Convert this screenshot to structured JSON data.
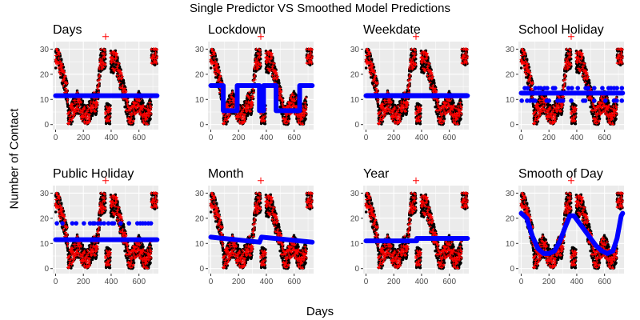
{
  "figure": {
    "title": "Single Predictor VS Smoothed Model Predictions",
    "xlabel": "Days",
    "ylabel": "Number of Contact"
  },
  "colors": {
    "panel_background": "#ebebeb",
    "grid": "#ffffff",
    "observed_points": "#000000",
    "prediction_crosses": "#ff0000",
    "smoothed_predictions": "#0000ff",
    "tick_text": "#4d4d4d"
  },
  "chart_data": [
    {
      "type": "scatter",
      "title": "Days",
      "xlim": [
        -20,
        740
      ],
      "ylim": [
        -2,
        33
      ],
      "x_ticks": [
        0,
        200,
        400,
        600
      ],
      "y_ticks": [
        0,
        10,
        20,
        30
      ],
      "grid": true,
      "observed": "actual daily contact counts (black points), 0-730 days, range about 0-30",
      "red_crosses": "per-observation predictions (red +), range about 0-30; outlier near x=360, y=35",
      "blue_line": [
        [
          0,
          11.5
        ],
        [
          730,
          11.5
        ]
      ]
    },
    {
      "type": "scatter",
      "title": "Lockdown",
      "xlim": [
        -20,
        740
      ],
      "ylim": [
        -2,
        33
      ],
      "x_ticks": [
        0,
        200,
        400,
        600
      ],
      "y_ticks": [
        0,
        10,
        20,
        30
      ],
      "grid": true,
      "blue_line": [
        [
          0,
          15.5
        ],
        [
          90,
          15.5
        ],
        [
          90,
          5.5
        ],
        [
          190,
          5.5
        ],
        [
          190,
          15.5
        ],
        [
          350,
          15.5
        ],
        [
          350,
          5.5
        ],
        [
          380,
          5.5
        ],
        [
          380,
          15.5
        ],
        [
          470,
          15.5
        ],
        [
          470,
          5.5
        ],
        [
          640,
          5.5
        ],
        [
          640,
          15.5
        ],
        [
          730,
          15.5
        ]
      ]
    },
    {
      "type": "scatter",
      "title": "Weekdate",
      "xlim": [
        -20,
        740
      ],
      "ylim": [
        -2,
        33
      ],
      "x_ticks": [
        0,
        200,
        400,
        600
      ],
      "y_ticks": [
        0,
        10,
        20,
        30
      ],
      "grid": true,
      "blue_line": [
        [
          0,
          11.5
        ],
        [
          730,
          11.5
        ]
      ],
      "blue_band": [
        10.5,
        12.5
      ]
    },
    {
      "type": "scatter",
      "title": "School Holiday",
      "xlim": [
        -20,
        740
      ],
      "ylim": [
        -2,
        33
      ],
      "x_ticks": [
        0,
        200,
        400,
        600
      ],
      "y_ticks": [
        0,
        10,
        20,
        30
      ],
      "grid": true,
      "blue_line": [
        [
          0,
          12.5
        ],
        [
          730,
          12.5
        ]
      ],
      "blue_levels": [
        9.5,
        14.5
      ]
    },
    {
      "type": "scatter",
      "title": "Public Holiday",
      "xlim": [
        -20,
        740
      ],
      "ylim": [
        -2,
        33
      ],
      "x_ticks": [
        0,
        200,
        400,
        600
      ],
      "y_ticks": [
        0,
        10,
        20,
        30
      ],
      "grid": true,
      "blue_line": [
        [
          0,
          11.5
        ],
        [
          730,
          11.5
        ]
      ],
      "blue_levels": [
        18
      ]
    },
    {
      "type": "scatter",
      "title": "Month",
      "xlim": [
        -20,
        740
      ],
      "ylim": [
        -2,
        33
      ],
      "x_ticks": [
        0,
        200,
        400,
        600
      ],
      "y_ticks": [
        0,
        10,
        20,
        30
      ],
      "grid": true,
      "blue_line": [
        [
          0,
          12.5
        ],
        [
          350,
          10.5
        ],
        [
          365,
          12.5
        ],
        [
          730,
          10.5
        ]
      ]
    },
    {
      "type": "scatter",
      "title": "Year",
      "xlim": [
        -20,
        740
      ],
      "ylim": [
        -2,
        33
      ],
      "x_ticks": [
        0,
        200,
        400,
        600
      ],
      "y_ticks": [
        0,
        10,
        20,
        30
      ],
      "grid": true,
      "blue_line": [
        [
          0,
          11
        ],
        [
          365,
          11
        ],
        [
          365,
          12
        ],
        [
          730,
          12
        ]
      ]
    },
    {
      "type": "scatter",
      "title": "Smooth of Day",
      "xlim": [
        -20,
        740
      ],
      "ylim": [
        -2,
        33
      ],
      "x_ticks": [
        0,
        200,
        400,
        600
      ],
      "y_ticks": [
        0,
        10,
        20,
        30
      ],
      "grid": true,
      "blue_line": [
        [
          0,
          22
        ],
        [
          40,
          20
        ],
        [
          80,
          13
        ],
        [
          120,
          8
        ],
        [
          160,
          6
        ],
        [
          200,
          6
        ],
        [
          240,
          7
        ],
        [
          280,
          11
        ],
        [
          320,
          17
        ],
        [
          350,
          21
        ],
        [
          380,
          21
        ],
        [
          420,
          18
        ],
        [
          460,
          15
        ],
        [
          500,
          12
        ],
        [
          540,
          9
        ],
        [
          580,
          7
        ],
        [
          620,
          6
        ],
        [
          660,
          7
        ],
        [
          690,
          12
        ],
        [
          720,
          21
        ],
        [
          730,
          22
        ]
      ]
    }
  ]
}
